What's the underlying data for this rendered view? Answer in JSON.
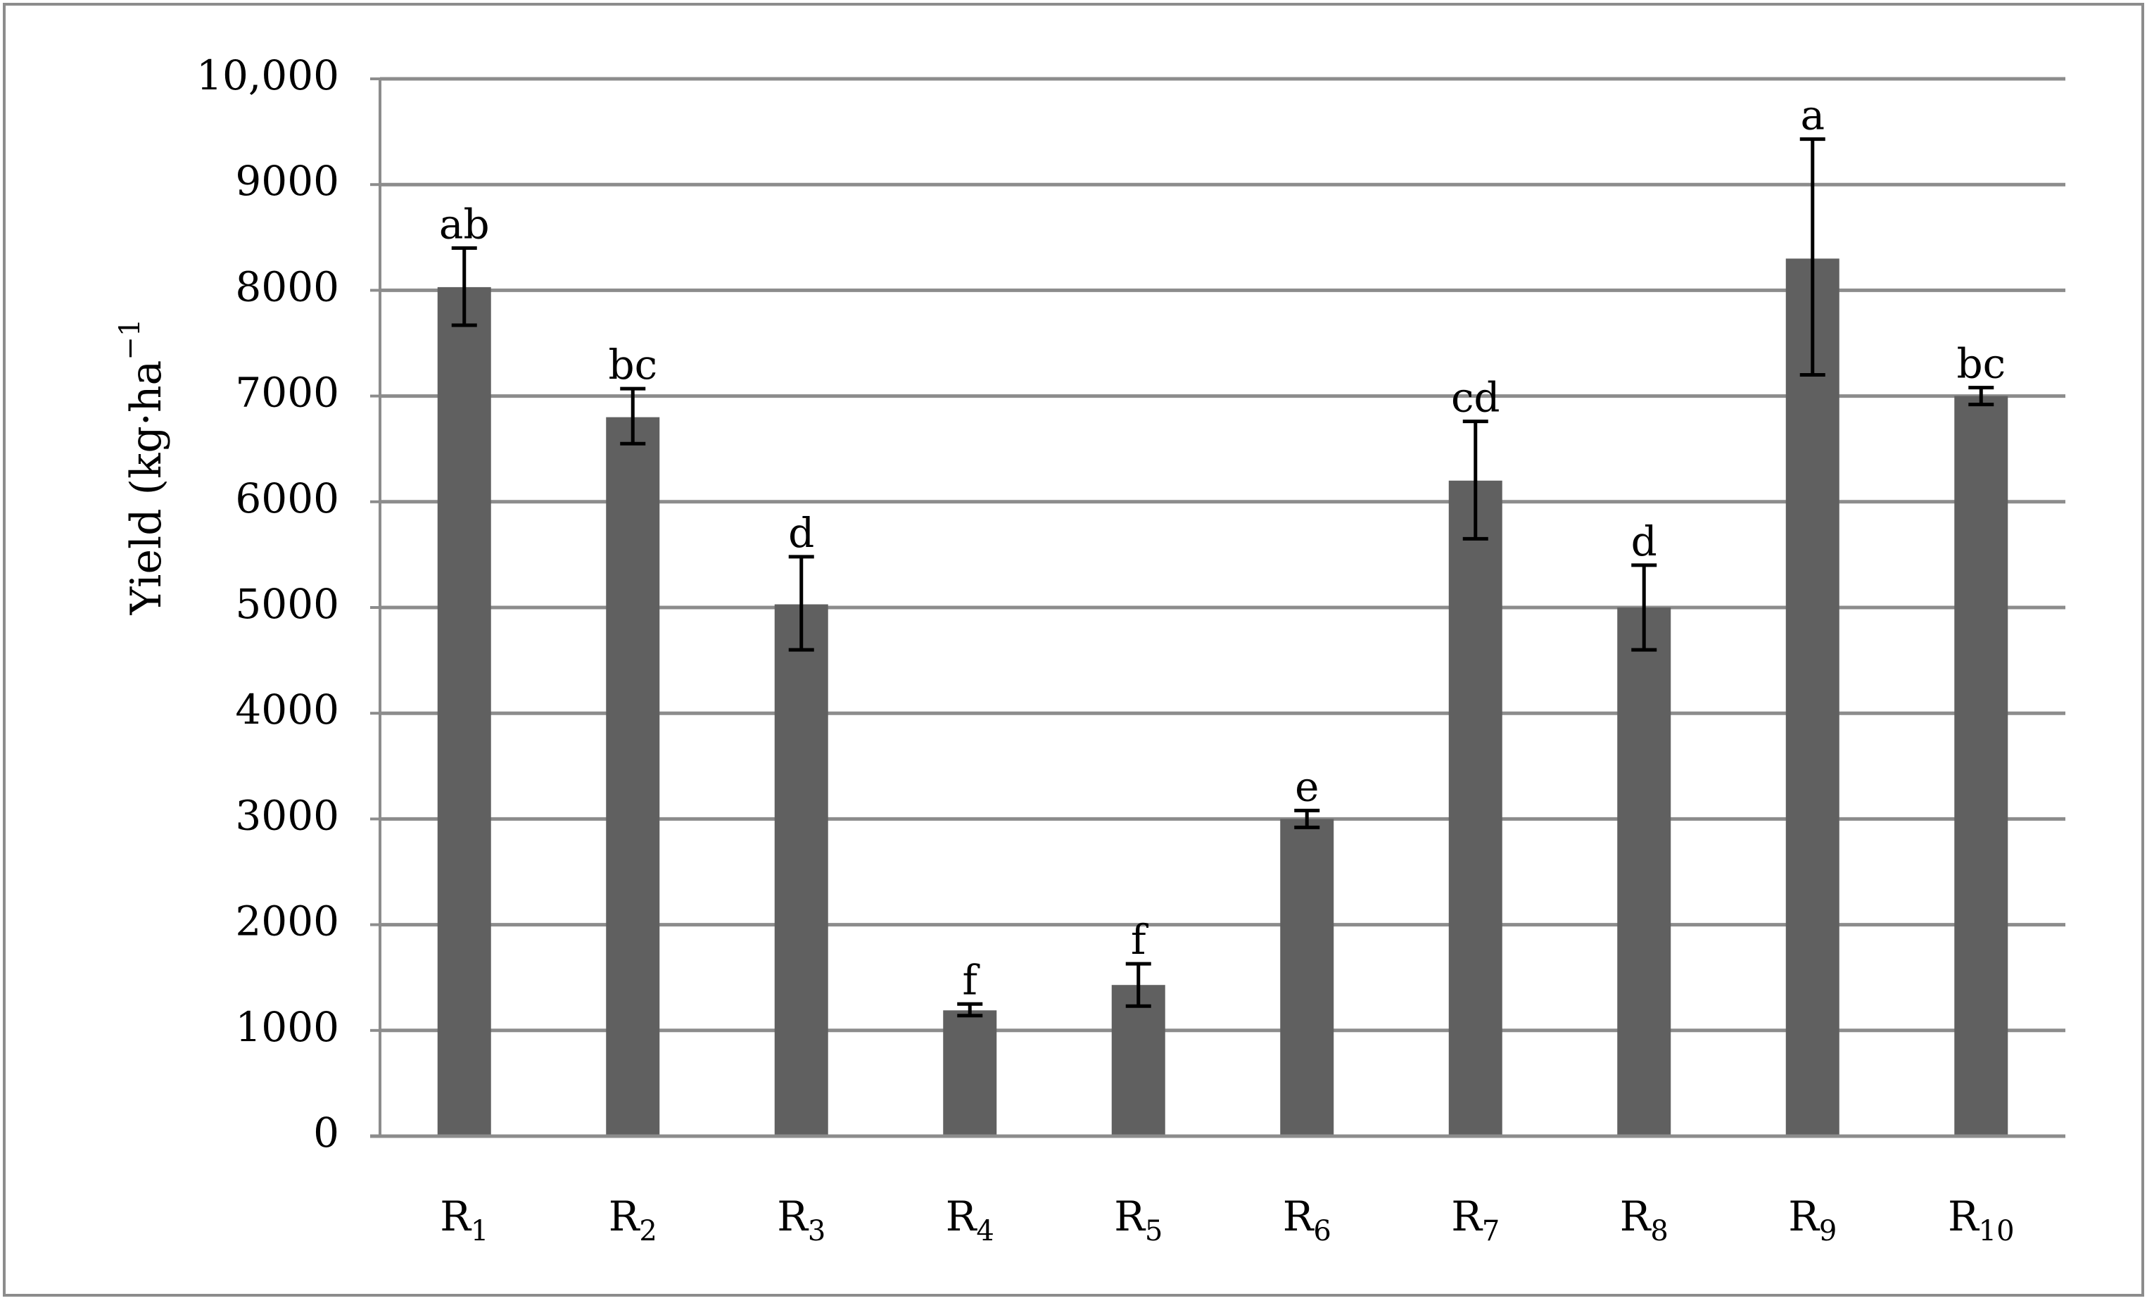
{
  "chart_data": {
    "type": "bar",
    "title": "",
    "xlabel": "",
    "ylabel": "Yield (kg·ha",
    "ylabel_sup": "−1",
    "ylim": [
      0,
      10000
    ],
    "yticks": [
      0,
      1000,
      2000,
      3000,
      4000,
      5000,
      6000,
      7000,
      8000,
      9000,
      10000
    ],
    "ytick_labels": [
      "0",
      "1000",
      "2000",
      "3000",
      "4000",
      "5000",
      "6000",
      "7000",
      "8000",
      "9000",
      "10,000"
    ],
    "grid": true,
    "legend": "none",
    "categories": [
      {
        "base": "R",
        "sub": "1"
      },
      {
        "base": "R",
        "sub": "2"
      },
      {
        "base": "R",
        "sub": "3"
      },
      {
        "base": "R",
        "sub": "4"
      },
      {
        "base": "R",
        "sub": "5"
      },
      {
        "base": "R",
        "sub": "6"
      },
      {
        "base": "R",
        "sub": "7"
      },
      {
        "base": "R",
        "sub": "8"
      },
      {
        "base": "R",
        "sub": "9"
      },
      {
        "base": "R",
        "sub": "10"
      }
    ],
    "values": [
      8030,
      6800,
      5030,
      1190,
      1430,
      3000,
      6200,
      5000,
      8300,
      7000
    ],
    "error_low": [
      7670,
      6550,
      4600,
      1140,
      1230,
      2920,
      5650,
      4600,
      7200,
      6920
    ],
    "error_high": [
      8400,
      7070,
      5480,
      1250,
      1630,
      3080,
      6760,
      5400,
      9430,
      7080
    ],
    "significance_labels": [
      "ab",
      "bc",
      "d",
      "f",
      "f",
      "e",
      "cd",
      "d",
      "a",
      "bc"
    ],
    "colors": {
      "bar": "#606060",
      "grid": "#8c8c8c",
      "axis": "#8c8c8c",
      "error_bar": "#000000",
      "frame": "#8c8c8c"
    }
  }
}
